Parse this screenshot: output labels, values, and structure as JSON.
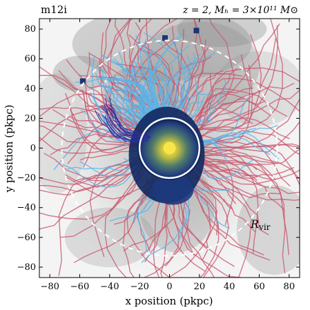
{
  "chart_data": {
    "type": "scatter",
    "title_left": "m12i",
    "title_right": "z = 2, Mₕ = 3×10¹¹ M⊙",
    "xlabel": "x position (pkpc)",
    "ylabel": "y position (pkpc)",
    "xlim": [
      -87,
      87
    ],
    "ylim": [
      -87,
      87
    ],
    "xticks": [
      -80,
      -60,
      -40,
      -20,
      0,
      20,
      40,
      60,
      80
    ],
    "yticks": [
      -80,
      -60,
      -40,
      -20,
      0,
      20,
      40,
      60,
      80
    ],
    "grid": false,
    "circles": [
      {
        "name": "Rvir",
        "label": "R_vir",
        "radius": 72,
        "center": [
          0,
          0
        ],
        "style": "dashed"
      },
      {
        "name": "galaxy",
        "label": "",
        "radius": 20,
        "center": [
          0,
          0
        ],
        "style": "solid"
      }
    ],
    "colors": {
      "red_tracks": "#c9576e",
      "blue_tracks": "#59b4e8",
      "dark_blue_tracks": "#2b2f9a",
      "galaxy_core": "#f1d43a",
      "galaxy_outer": "#1f3b7a",
      "background_gas": "#b8b8b8"
    }
  }
}
